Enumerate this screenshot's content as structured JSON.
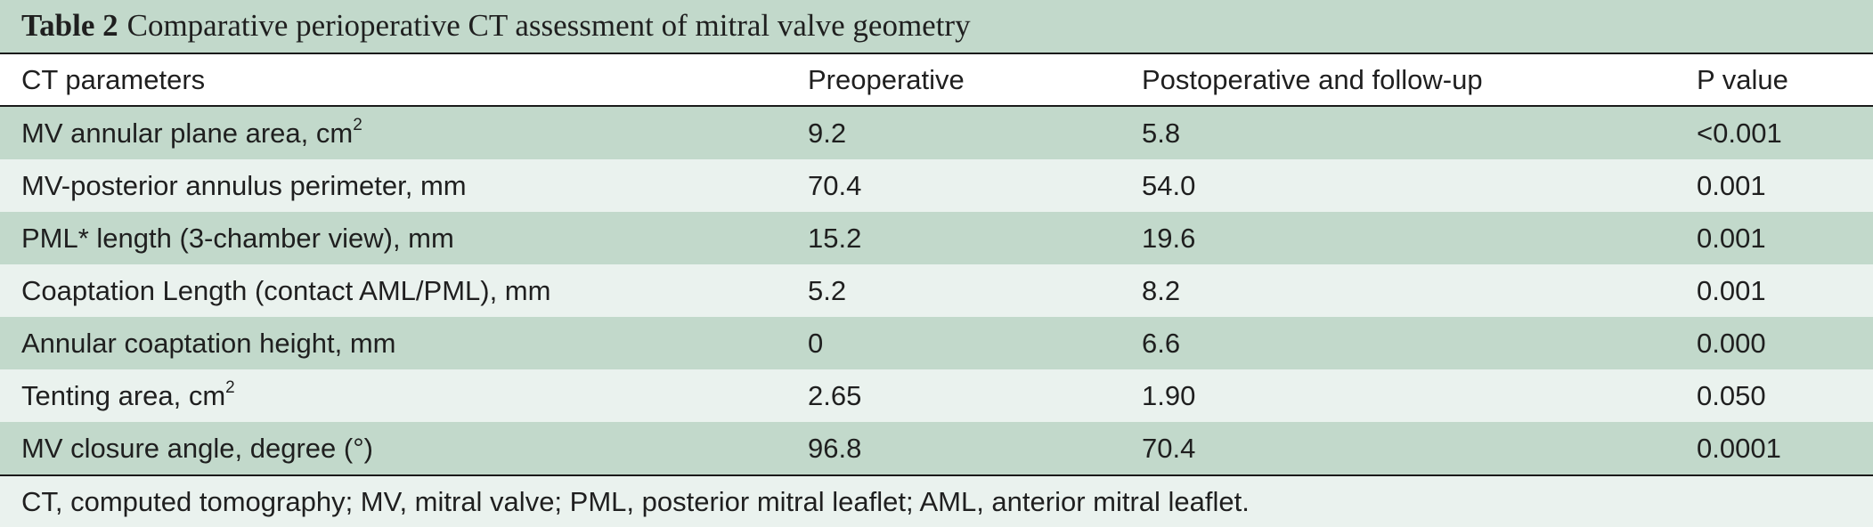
{
  "caption": {
    "label": "Table 2",
    "title": "Comparative perioperative CT assessment of mitral valve geometry"
  },
  "columns": [
    "CT parameters",
    "Preoperative",
    "Postoperative and follow-up",
    "P value"
  ],
  "rows": [
    {
      "parameter": "MV annular plane area, cm",
      "sup": "2",
      "pre": "9.2",
      "post": "5.8",
      "p": "<0.001"
    },
    {
      "parameter": "MV-posterior annulus perimeter, mm",
      "sup": "",
      "pre": "70.4",
      "post": "54.0",
      "p": "0.001"
    },
    {
      "parameter": "PML* length (3-chamber view), mm",
      "sup": "",
      "pre": "15.2",
      "post": "19.6",
      "p": "0.001"
    },
    {
      "parameter": "Coaptation Length (contact AML/PML), mm",
      "sup": "",
      "pre": "5.2",
      "post": "8.2",
      "p": "0.001"
    },
    {
      "parameter": "Annular coaptation height, mm",
      "sup": "",
      "pre": "0",
      "post": "6.6",
      "p": "0.000"
    },
    {
      "parameter": "Tenting area, cm",
      "sup": "2",
      "pre": "2.65",
      "post": "1.90",
      "p": "0.050"
    },
    {
      "parameter": "MV closure angle, degree (°)",
      "sup": "",
      "pre": "96.8",
      "post": "70.4",
      "p": "0.0001"
    }
  ],
  "footnote": "CT, computed tomography; MV, mitral valve; PML, posterior mitral leaflet; AML, anterior mitral leaflet."
}
